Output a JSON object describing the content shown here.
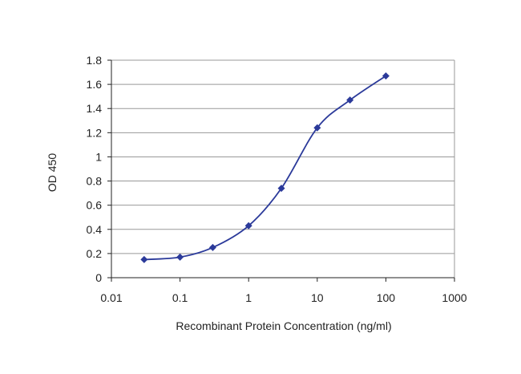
{
  "chart_data": {
    "type": "line",
    "title": "",
    "xlabel": "Recombinant Protein Concentration (ng/ml)",
    "ylabel": "OD 450",
    "x_scale": "log",
    "xlim": [
      0.01,
      1000
    ],
    "ylim": [
      0,
      1.8
    ],
    "x_ticks": [
      "0.01",
      "0.1",
      "1",
      "10",
      "100",
      "1000"
    ],
    "y_ticks": [
      "0",
      "0.2",
      "0.4",
      "0.6",
      "0.8",
      "1",
      "1.2",
      "1.4",
      "1.6",
      "1.8"
    ],
    "grid": "horizontal",
    "legend": "none",
    "colors": {
      "series": "#2b3a9a",
      "grid": "#999999",
      "axis": "#222222"
    },
    "series": [
      {
        "x": [
          0.03,
          0.1,
          0.3,
          1,
          3,
          10,
          30,
          100
        ],
        "y": [
          0.15,
          0.17,
          0.25,
          0.43,
          0.74,
          1.24,
          1.47,
          1.67
        ]
      }
    ]
  }
}
